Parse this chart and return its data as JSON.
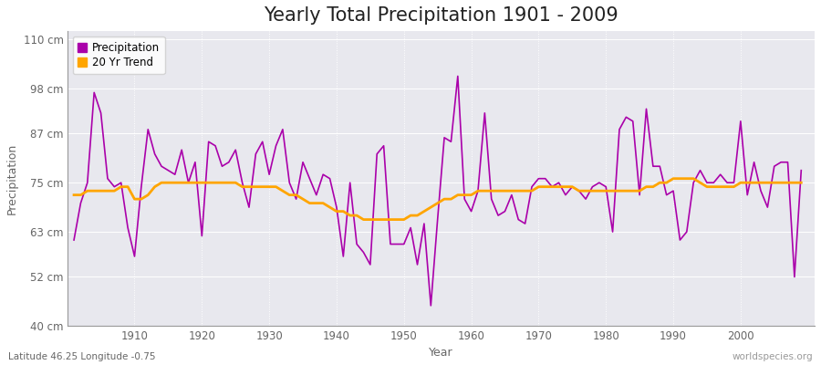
{
  "title": "Yearly Total Precipitation 1901 - 2009",
  "xlabel": "Year",
  "ylabel": "Precipitation",
  "subtitle": "Latitude 46.25 Longitude -0.75",
  "watermark": "worldspecies.org",
  "years": [
    1901,
    1902,
    1903,
    1904,
    1905,
    1906,
    1907,
    1908,
    1909,
    1910,
    1911,
    1912,
    1913,
    1914,
    1915,
    1916,
    1917,
    1918,
    1919,
    1920,
    1921,
    1922,
    1923,
    1924,
    1925,
    1926,
    1927,
    1928,
    1929,
    1930,
    1931,
    1932,
    1933,
    1934,
    1935,
    1936,
    1937,
    1938,
    1939,
    1940,
    1941,
    1942,
    1943,
    1944,
    1945,
    1946,
    1947,
    1948,
    1949,
    1950,
    1951,
    1952,
    1953,
    1954,
    1955,
    1956,
    1957,
    1958,
    1959,
    1960,
    1961,
    1962,
    1963,
    1964,
    1965,
    1966,
    1967,
    1968,
    1969,
    1970,
    1971,
    1972,
    1973,
    1974,
    1975,
    1976,
    1977,
    1978,
    1979,
    1980,
    1981,
    1982,
    1983,
    1984,
    1985,
    1986,
    1987,
    1988,
    1989,
    1990,
    1991,
    1992,
    1993,
    1994,
    1995,
    1996,
    1997,
    1998,
    1999,
    2000,
    2001,
    2002,
    2003,
    2004,
    2005,
    2006,
    2007,
    2008,
    2009
  ],
  "precipitation": [
    61,
    70,
    75,
    97,
    92,
    76,
    74,
    75,
    64,
    57,
    74,
    88,
    82,
    79,
    78,
    77,
    83,
    75,
    80,
    62,
    85,
    84,
    79,
    80,
    83,
    75,
    69,
    82,
    85,
    77,
    84,
    88,
    75,
    71,
    80,
    76,
    72,
    77,
    76,
    69,
    57,
    75,
    60,
    58,
    55,
    82,
    84,
    60,
    60,
    60,
    64,
    55,
    65,
    45,
    66,
    86,
    85,
    101,
    71,
    68,
    73,
    92,
    71,
    67,
    68,
    72,
    66,
    65,
    74,
    76,
    76,
    74,
    75,
    72,
    74,
    73,
    71,
    74,
    75,
    74,
    63,
    88,
    91,
    90,
    72,
    93,
    79,
    79,
    72,
    73,
    61,
    63,
    75,
    78,
    75,
    75,
    77,
    75,
    75,
    90,
    72,
    80,
    73,
    69,
    79,
    80,
    80,
    52,
    78
  ],
  "trend": [
    72,
    72,
    73,
    73,
    73,
    73,
    73,
    74,
    74,
    71,
    71,
    72,
    74,
    75,
    75,
    75,
    75,
    75,
    75,
    75,
    75,
    75,
    75,
    75,
    75,
    74,
    74,
    74,
    74,
    74,
    74,
    73,
    72,
    72,
    71,
    70,
    70,
    70,
    69,
    68,
    68,
    67,
    67,
    66,
    66,
    66,
    66,
    66,
    66,
    66,
    67,
    67,
    68,
    69,
    70,
    71,
    71,
    72,
    72,
    72,
    73,
    73,
    73,
    73,
    73,
    73,
    73,
    73,
    73,
    74,
    74,
    74,
    74,
    74,
    74,
    73,
    73,
    73,
    73,
    73,
    73,
    73,
    73,
    73,
    73,
    74,
    74,
    75,
    75,
    76,
    76,
    76,
    76,
    75,
    74,
    74,
    74,
    74,
    74,
    75,
    75,
    75,
    75,
    75,
    75,
    75,
    75,
    75,
    75
  ],
  "ylim": [
    40,
    112
  ],
  "yticks": [
    40,
    52,
    63,
    75,
    87,
    98,
    110
  ],
  "ytick_labels": [
    "40 cm",
    "52 cm",
    "63 cm",
    "75 cm",
    "87 cm",
    "98 cm",
    "110 cm"
  ],
  "xticks": [
    1910,
    1920,
    1930,
    1940,
    1950,
    1960,
    1970,
    1980,
    1990,
    2000
  ],
  "fig_bg_color": "#ffffff",
  "plot_bg_color": "#e8e8ee",
  "precip_color": "#aa00aa",
  "trend_color": "#ffa500",
  "grid_color": "#ffffff",
  "spine_color": "#999999",
  "tick_color": "#666666",
  "subtitle_color": "#666666",
  "watermark_color": "#999999",
  "title_fontsize": 15,
  "label_fontsize": 9,
  "tick_fontsize": 8.5,
  "subtitle_fontsize": 7.5,
  "precip_linewidth": 1.2,
  "trend_linewidth": 2.0
}
